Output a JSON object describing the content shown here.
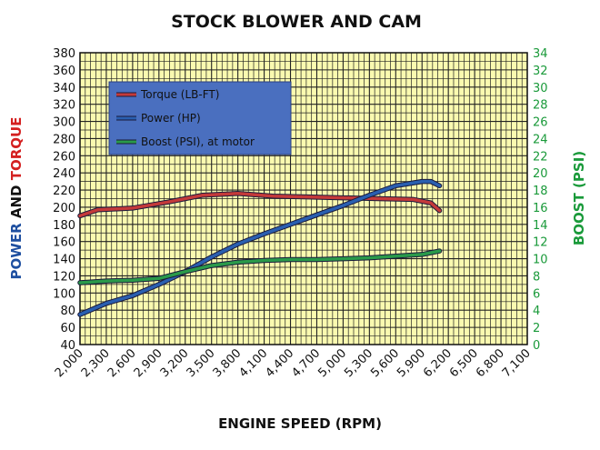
{
  "chart_data": {
    "type": "line",
    "title": "STOCK BLOWER AND CAM",
    "xlabel": "ENGINE SPEED (RPM)",
    "ylabel_left_parts": [
      {
        "text": "POWER",
        "color": "#1e4fa0"
      },
      {
        "text": "AND",
        "color": "#111111"
      },
      {
        "text": "TORQUE",
        "color": "#d42020"
      }
    ],
    "ylabel_right": "BOOST (PSI)",
    "xlim": [
      2000,
      7100
    ],
    "ylim_left": [
      40,
      380
    ],
    "ylim_right": [
      0,
      34
    ],
    "x_ticks": [
      "2,000",
      "2,300",
      "2,600",
      "2,900",
      "3,200",
      "3,500",
      "3,800",
      "4,100",
      "4,400",
      "4,700",
      "5,000",
      "5,300",
      "5,600",
      "5,900",
      "6,200",
      "6,500",
      "6,800",
      "7,100"
    ],
    "y_ticks_left": [
      40,
      60,
      80,
      100,
      120,
      140,
      160,
      180,
      200,
      220,
      240,
      260,
      280,
      300,
      320,
      340,
      360,
      380
    ],
    "y_ticks_right": [
      0,
      2,
      4,
      6,
      8,
      10,
      12,
      14,
      16,
      18,
      20,
      22,
      24,
      26,
      28,
      30,
      32,
      34
    ],
    "grid": true,
    "legend_position": "top-left",
    "colors": {
      "plot_bg": "#fafab0",
      "grid": "#222222",
      "left_axis_text": "#111111",
      "right_axis_text": "#1a9a3a",
      "legend_bg": "#4a6fbf"
    },
    "series": [
      {
        "name": "Torque (LB-FT)",
        "color": "#c43a3a",
        "axis": "left",
        "x": [
          2000,
          2200,
          2600,
          3000,
          3400,
          3800,
          4200,
          4600,
          5000,
          5400,
          5800,
          6000,
          6100
        ],
        "y": [
          190,
          197,
          199,
          206,
          214,
          216,
          213,
          212,
          211,
          210,
          209,
          205,
          196
        ]
      },
      {
        "name": "Power (HP)",
        "color": "#2a5fb0",
        "axis": "left",
        "x": [
          2000,
          2300,
          2600,
          2900,
          3200,
          3500,
          3800,
          4100,
          4400,
          4700,
          5000,
          5300,
          5600,
          5900,
          6000,
          6100
        ],
        "y": [
          75,
          88,
          97,
          110,
          125,
          142,
          157,
          169,
          180,
          191,
          202,
          214,
          225,
          230,
          230,
          225
        ]
      },
      {
        "name": "Boost (PSI), at motor",
        "color": "#2a9a4a",
        "axis": "right",
        "x": [
          2000,
          2300,
          2600,
          2900,
          3200,
          3500,
          3800,
          4100,
          4400,
          4700,
          5000,
          5300,
          5600,
          5900,
          6100
        ],
        "y": [
          7.2,
          7.4,
          7.5,
          7.7,
          8.5,
          9.2,
          9.6,
          9.8,
          9.9,
          9.9,
          10.0,
          10.1,
          10.3,
          10.5,
          10.9
        ]
      }
    ]
  }
}
